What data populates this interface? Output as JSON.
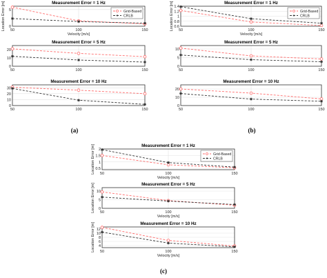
{
  "chart_data": [
    {
      "panel": "a",
      "caption": "(a)",
      "plots": [
        {
          "type": "line",
          "title": "Measurement Error = 1 Hz",
          "xlabel": "Velocity [m/s]",
          "ylabel": "Location Error [m]",
          "x": [
            50,
            100,
            150
          ],
          "xlim": [
            50,
            150
          ],
          "ylim": [
            0,
            6
          ],
          "yticks": [
            0,
            5
          ],
          "xticks": [
            50,
            100,
            150
          ],
          "legend": "top-right",
          "grid": true,
          "series": [
            {
              "name": "Grid-Based",
              "values": [
                5.7,
                1.6,
                0.7
              ],
              "color": "#ff6a6a"
            },
            {
              "name": "CRLB",
              "values": [
                2.3,
                1.4,
                0.9
              ],
              "color": "#333333"
            }
          ]
        },
        {
          "type": "line",
          "title": "Measurement Error = 5 Hz",
          "xlabel": "",
          "ylabel": "",
          "x": [
            50,
            100,
            150
          ],
          "xlim": [
            50,
            150
          ],
          "ylim": [
            0,
            25
          ],
          "yticks": [
            0,
            10,
            20
          ],
          "xticks": [
            50,
            100,
            150
          ],
          "grid": true,
          "series": [
            {
              "name": "Grid-Based",
              "values": [
                21,
                15.5,
                11.5
              ],
              "color": "#ff6a6a"
            },
            {
              "name": "CRLB",
              "values": [
                12,
                7.5,
                5
              ],
              "color": "#333333"
            }
          ]
        },
        {
          "type": "line",
          "title": "Measurement Error = 10 Hz",
          "xlabel": "",
          "ylabel": "",
          "x": [
            50,
            100,
            150
          ],
          "xlim": [
            50,
            150
          ],
          "ylim": [
            0,
            35
          ],
          "yticks": [
            0,
            10,
            20,
            30
          ],
          "xticks": [
            50,
            100,
            150
          ],
          "grid": true,
          "series": [
            {
              "name": "Grid-Based",
              "values": [
                31,
                26,
                20
              ],
              "color": "#ff6a6a"
            },
            {
              "name": "CRLB",
              "values": [
                29,
                9,
                2
              ],
              "color": "#333333"
            }
          ]
        }
      ]
    },
    {
      "panel": "b",
      "caption": "(b)",
      "plots": [
        {
          "type": "line",
          "title": "Measurement Error = 1 Hz",
          "xlabel": "Velocity [m/s]",
          "ylabel": "Location Error [m]",
          "x": [
            50,
            100,
            150
          ],
          "xlim": [
            50,
            150
          ],
          "ylim": [
            0.6,
            1.4
          ],
          "yticks": [
            0.6,
            0.8,
            1,
            1.2,
            1.4
          ],
          "xticks": [
            50,
            100,
            150
          ],
          "legend": "top-right",
          "grid": true,
          "series": [
            {
              "name": "Grid-Based",
              "values": [
                1.23,
                0.77,
                0.63
              ],
              "color": "#ff6a6a"
            },
            {
              "name": "CRLB",
              "values": [
                1.38,
                0.9,
                0.72
              ],
              "color": "#333333"
            }
          ]
        },
        {
          "type": "line",
          "title": "Measurement Error = 5 Hz",
          "xlabel": "",
          "ylabel": "",
          "x": [
            50,
            100,
            150
          ],
          "xlim": [
            50,
            150
          ],
          "ylim": [
            0,
            12
          ],
          "yticks": [
            0,
            5,
            10
          ],
          "xticks": [
            50,
            100,
            150
          ],
          "grid": true,
          "series": [
            {
              "name": "Grid-Based",
              "values": [
                10.5,
                6,
                4.2
              ],
              "color": "#ff6a6a"
            },
            {
              "name": "CRLB",
              "values": [
                6.5,
                3.8,
                2.6
              ],
              "color": "#333333"
            }
          ]
        },
        {
          "type": "line",
          "title": "Measurement Error = 10 Hz",
          "xlabel": "",
          "ylabel": "",
          "x": [
            50,
            100,
            150
          ],
          "xlim": [
            50,
            150
          ],
          "ylim": [
            0,
            25
          ],
          "yticks": [
            0,
            10,
            20
          ],
          "xticks": [
            50,
            100,
            150
          ],
          "grid": true,
          "series": [
            {
              "name": "Grid-Based",
              "values": [
                20,
                15,
                8
              ],
              "color": "#ff6a6a"
            },
            {
              "name": "CRLB",
              "values": [
                14.5,
                7.8,
                5.2
              ],
              "color": "#333333"
            }
          ]
        }
      ]
    },
    {
      "panel": "c",
      "caption": "(c)",
      "plots": [
        {
          "type": "line",
          "title": "Measurement Error = 1 Hz",
          "xlabel": "Velocity [m/s]",
          "ylabel": "Location Error [m]",
          "x": [
            50,
            100,
            150
          ],
          "xlim": [
            50,
            150
          ],
          "ylim": [
            0.4,
            2
          ],
          "yticks": [
            0.5,
            1,
            1.5,
            2
          ],
          "xticks": [
            50,
            100,
            150
          ],
          "legend": "top-right",
          "grid": true,
          "series": [
            {
              "name": "Grid-Based",
              "values": [
                1.5,
                0.78,
                0.55
              ],
              "color": "#ff6a6a"
            },
            {
              "name": "CRLB",
              "values": [
                1.95,
                0.95,
                0.6
              ],
              "color": "#333333"
            }
          ]
        },
        {
          "type": "line",
          "title": "Measurement Error = 5 Hz",
          "xlabel": "Velocity [m/s]",
          "ylabel": "Location Error [m]",
          "x": [
            50,
            100,
            150
          ],
          "xlim": [
            50,
            150
          ],
          "ylim": [
            0,
            12
          ],
          "yticks": [
            0,
            5,
            10
          ],
          "xticks": [
            50,
            100,
            150
          ],
          "grid": true,
          "series": [
            {
              "name": "Grid-Based",
              "values": [
                9.5,
                4.5,
                1.8
              ],
              "color": "#ff6a6a"
            },
            {
              "name": "CRLB",
              "values": [
                6.5,
                4.2,
                2.2
              ],
              "color": "#333333"
            }
          ]
        },
        {
          "type": "line",
          "title": "Measurement Error = 10 Hz",
          "xlabel": "Velocity [m/s]",
          "ylabel": "Location Error [m]",
          "x": [
            50,
            100,
            150
          ],
          "xlim": [
            50,
            150
          ],
          "ylim": [
            3,
            13
          ],
          "yticks": [
            4,
            6,
            8,
            10,
            12
          ],
          "xticks": [
            50,
            100,
            150
          ],
          "grid": true,
          "series": [
            {
              "name": "Grid-Based",
              "values": [
                12.8,
                6.5,
                3.8
              ],
              "color": "#ff6a6a"
            },
            {
              "name": "CRLB",
              "values": [
                10.5,
                5.2,
                3.4
              ],
              "color": "#333333"
            }
          ]
        }
      ]
    }
  ]
}
